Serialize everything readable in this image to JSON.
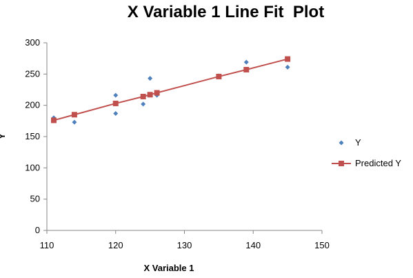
{
  "chart_data": {
    "type": "scatter",
    "title": "X Variable 1 Line Fit  Plot",
    "xlabel": "X Variable 1",
    "ylabel": "Y",
    "xlim": [
      110,
      150
    ],
    "ylim": [
      0,
      300
    ],
    "xticks": [
      "110",
      "120",
      "130",
      "140",
      "150"
    ],
    "yticks": [
      "0",
      "50",
      "100",
      "150",
      "200",
      "250",
      "300"
    ],
    "legend_position": "right",
    "grid": false,
    "series": [
      {
        "name": "Y",
        "marker": "diamond",
        "color": "#4f81bd",
        "points": [
          {
            "x": 111,
            "y": 180
          },
          {
            "x": 114,
            "y": 173
          },
          {
            "x": 120,
            "y": 187
          },
          {
            "x": 120,
            "y": 203
          },
          {
            "x": 120,
            "y": 216
          },
          {
            "x": 124,
            "y": 202
          },
          {
            "x": 125,
            "y": 243
          },
          {
            "x": 126,
            "y": 216
          },
          {
            "x": 135,
            "y": 247
          },
          {
            "x": 139,
            "y": 269
          },
          {
            "x": 145,
            "y": 261
          }
        ]
      },
      {
        "name": "Predicted Y",
        "marker": "square",
        "line": true,
        "color": "#c0504d",
        "points": [
          {
            "x": 111,
            "y": 176
          },
          {
            "x": 114,
            "y": 185
          },
          {
            "x": 120,
            "y": 203
          },
          {
            "x": 124,
            "y": 214
          },
          {
            "x": 125,
            "y": 217
          },
          {
            "x": 126,
            "y": 220
          },
          {
            "x": 135,
            "y": 246
          },
          {
            "x": 139,
            "y": 257
          },
          {
            "x": 145,
            "y": 274
          }
        ]
      }
    ]
  }
}
